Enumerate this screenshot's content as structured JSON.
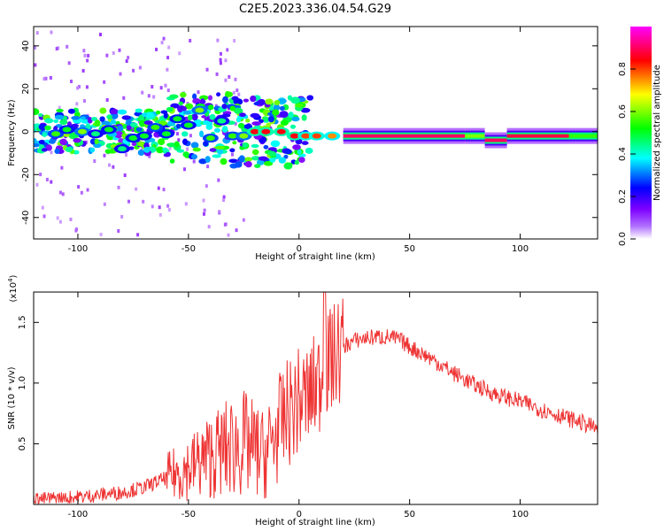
{
  "title": "C2E5.2023.336.04.54.G29",
  "chart_data": [
    {
      "type": "heatmap",
      "xlabel": "Height of straight line (km)",
      "ylabel": "Frequency (Hz)",
      "xlim": [
        -120,
        135
      ],
      "ylim": [
        -50,
        49
      ],
      "xticks": [
        -100,
        -50,
        0,
        50,
        100
      ],
      "yticks": [
        -40,
        -20,
        0,
        20,
        40
      ],
      "colorbar": {
        "label": "Normalized spectral amplitude",
        "range": [
          0,
          1
        ],
        "ticks": [
          "0.0",
          "0.2",
          "0.4",
          "0.6",
          "0.8"
        ],
        "colors": [
          "#ffffff",
          "#7f00ff",
          "#0000ff",
          "#00ffff",
          "#00ff00",
          "#ffff00",
          "#ff0000",
          "#ff00ff"
        ]
      },
      "blobs": [
        {
          "x": -110,
          "y": -1,
          "a": 0.55
        },
        {
          "x": -105,
          "y": 1,
          "a": 0.5
        },
        {
          "x": -98,
          "y": 0,
          "a": 0.6
        },
        {
          "x": -92,
          "y": -1,
          "a": 0.45
        },
        {
          "x": -86,
          "y": 1,
          "a": 0.5
        },
        {
          "x": -80,
          "y": -8,
          "a": 0.45
        },
        {
          "x": -75,
          "y": -3,
          "a": 0.5
        },
        {
          "x": -70,
          "y": -2,
          "a": 0.5
        },
        {
          "x": -65,
          "y": 2,
          "a": 0.55
        },
        {
          "x": -60,
          "y": -1,
          "a": 0.5
        },
        {
          "x": -55,
          "y": 6,
          "a": 0.5
        },
        {
          "x": -50,
          "y": 3,
          "a": 0.5
        },
        {
          "x": -45,
          "y": 10,
          "a": 0.6
        },
        {
          "x": -40,
          "y": -3,
          "a": 0.55
        },
        {
          "x": -35,
          "y": 5,
          "a": 0.45
        },
        {
          "x": -30,
          "y": -2,
          "a": 0.55
        },
        {
          "x": -25,
          "y": -2,
          "a": 0.6
        },
        {
          "x": -20,
          "y": 0,
          "a": 0.85
        },
        {
          "x": -15,
          "y": 0,
          "a": 0.85
        },
        {
          "x": -8,
          "y": 0,
          "a": 0.85
        },
        {
          "x": -2,
          "y": -2,
          "a": 0.85
        },
        {
          "x": 3,
          "y": -2,
          "a": 0.8
        },
        {
          "x": 8,
          "y": -2,
          "a": 0.8
        },
        {
          "x": 15,
          "y": -2,
          "a": 0.75
        }
      ],
      "ridges": [
        {
          "x0": 20,
          "x1": 75,
          "y": -2,
          "a": 0.9
        },
        {
          "x0": 75,
          "x1": 84,
          "y": -2,
          "a": 0.6
        },
        {
          "x0": 84,
          "x1": 94,
          "y": -4,
          "a": 0.9
        },
        {
          "x0": 94,
          "x1": 122,
          "y": -2,
          "a": 0.88
        },
        {
          "x0": 122,
          "x1": 135,
          "y": -2,
          "a": 0.55
        }
      ]
    },
    {
      "type": "line",
      "xlabel": "Height of straight line (km)",
      "ylabel": "SNR (10 * v/v)",
      "multiplier": "(x10^4)",
      "xlim": [
        -120,
        135
      ],
      "ylim": [
        0,
        1.75
      ],
      "xticks": [
        -100,
        -50,
        0,
        50,
        100
      ],
      "yticks": [
        0.5,
        1.0,
        1.5
      ],
      "color": "#ee3333",
      "series": [
        {
          "x": [
            -120,
            -110,
            -100,
            -90,
            -80,
            -70,
            -60,
            -50,
            -40,
            -30,
            -25,
            -20,
            -15,
            -10,
            -5,
            0,
            5,
            10,
            15,
            20,
            25,
            30,
            35,
            40,
            45,
            50,
            55,
            60,
            70,
            80,
            90,
            100,
            110,
            120,
            130,
            135
          ],
          "values": [
            0.04,
            0.05,
            0.06,
            0.08,
            0.1,
            0.14,
            0.22,
            0.3,
            0.4,
            0.48,
            0.5,
            0.45,
            0.4,
            0.6,
            0.75,
            0.85,
            0.9,
            1.05,
            1.2,
            1.3,
            1.35,
            1.37,
            1.38,
            1.38,
            1.36,
            1.3,
            1.25,
            1.2,
            1.08,
            0.98,
            0.9,
            0.85,
            0.78,
            0.72,
            0.66,
            0.62
          ]
        }
      ]
    }
  ]
}
